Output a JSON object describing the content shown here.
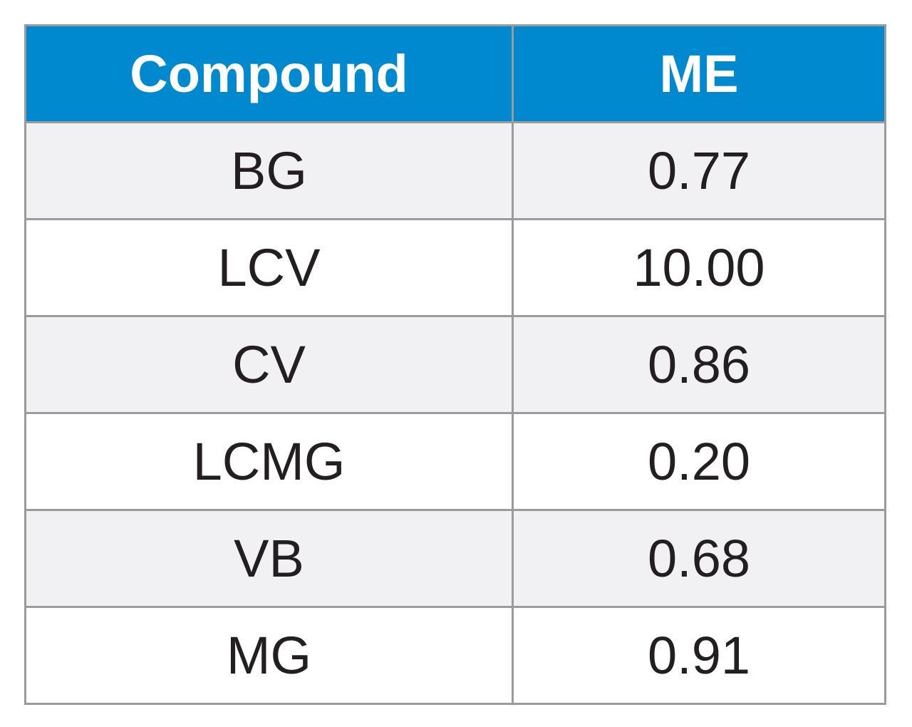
{
  "table": {
    "header": [
      "Compound",
      "ME"
    ],
    "rows": [
      [
        "BG",
        "0.77"
      ],
      [
        "LCV",
        "10.00"
      ],
      [
        "CV",
        "0.86"
      ],
      [
        "LCMG",
        "0.20"
      ],
      [
        "VB",
        "0.68"
      ],
      [
        "MG",
        "0.91"
      ]
    ]
  }
}
